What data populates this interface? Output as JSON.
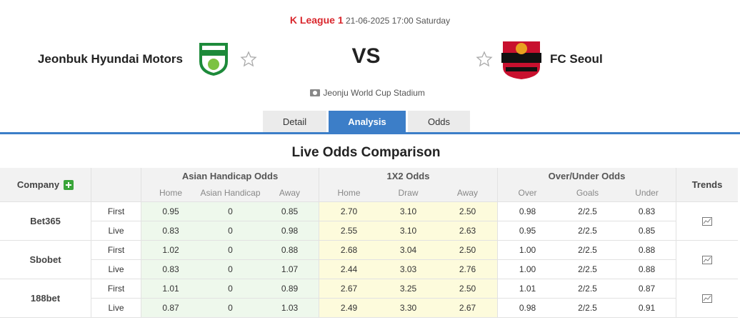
{
  "header": {
    "league": "K League 1",
    "datetime": "21-06-2025 17:00 Saturday",
    "home_team": "Jeonbuk Hyundai Motors",
    "vs": "VS",
    "away_team": "FC Seoul",
    "stadium": "Jeonju World Cup Stadium"
  },
  "tabs": [
    "Detail",
    "Analysis",
    "Odds"
  ],
  "section_title": "Live Odds Comparison",
  "table": {
    "company_header": "Company",
    "trends_header": "Trends",
    "groups": [
      {
        "title": "Asian Handicap Odds",
        "columns": [
          "Home",
          "Asian Handicap",
          "Away"
        ]
      },
      {
        "title": "1X2 Odds",
        "columns": [
          "Home",
          "Draw",
          "Away"
        ]
      },
      {
        "title": "Over/Under Odds",
        "columns": [
          "Over",
          "Goals",
          "Under"
        ]
      }
    ],
    "rows": [
      {
        "company": "Bet365",
        "lines": [
          {
            "type": "First",
            "values": [
              "0.95",
              "0",
              "0.85",
              "2.70",
              "3.10",
              "2.50",
              "0.98",
              "2/2.5",
              "0.83"
            ]
          },
          {
            "type": "Live",
            "values": [
              "0.83",
              "0",
              "0.98",
              "2.55",
              "3.10",
              "2.63",
              "0.95",
              "2/2.5",
              "0.85"
            ]
          }
        ]
      },
      {
        "company": "Sbobet",
        "lines": [
          {
            "type": "First",
            "values": [
              "1.02",
              "0",
              "0.88",
              "2.68",
              "3.04",
              "2.50",
              "1.00",
              "2/2.5",
              "0.88"
            ]
          },
          {
            "type": "Live",
            "values": [
              "0.83",
              "0",
              "1.07",
              "2.44",
              "3.03",
              "2.76",
              "1.00",
              "2/2.5",
              "0.88"
            ]
          }
        ]
      },
      {
        "company": "188bet",
        "lines": [
          {
            "type": "First",
            "values": [
              "1.01",
              "0",
              "0.89",
              "2.67",
              "3.25",
              "2.50",
              "1.01",
              "2/2.5",
              "0.87"
            ]
          },
          {
            "type": "Live",
            "values": [
              "0.87",
              "0",
              "1.03",
              "2.49",
              "3.30",
              "2.67",
              "0.98",
              "2/2.5",
              "0.91"
            ]
          }
        ]
      }
    ]
  }
}
